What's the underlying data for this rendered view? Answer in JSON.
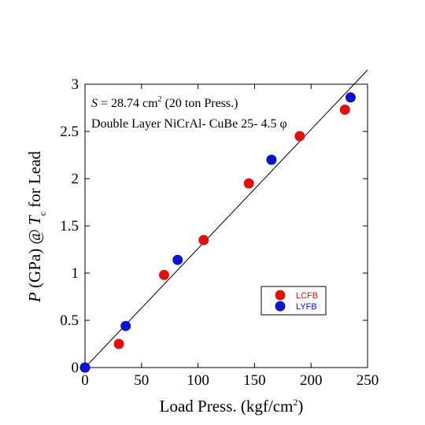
{
  "chart_data": {
    "type": "scatter",
    "xlabel": {
      "main": "Load Press. (kgf/cm",
      "sup": "2",
      "tail": ")"
    },
    "ylabel": {
      "var": "P",
      "unit": " (GPa) @ ",
      "tvar": "T",
      "sub": "c",
      "tail": "  for Lead"
    },
    "annotation": {
      "line1": {
        "var": "S",
        "rest": " = 28.74 cm",
        "sup": "2",
        "tail": " (20 ton Press.)"
      },
      "line2": "Double Layer NiCrAl- CuBe 25- 4.5 φ"
    },
    "xlim": [
      0,
      250
    ],
    "ylim": [
      0,
      3
    ],
    "xticks": [
      "0",
      "50",
      "100",
      "150",
      "200",
      "250"
    ],
    "yticks": [
      "0",
      "0.5",
      "1",
      "1.5",
      "2",
      "2.5",
      "3"
    ],
    "grid": false,
    "legend_position": "lower-right",
    "fit_line": {
      "x": [
        0,
        250
      ],
      "y": [
        0,
        3.15
      ]
    },
    "series": [
      {
        "name": "LCFB",
        "color": "#dd1111",
        "points": [
          [
            0,
            0
          ],
          [
            30,
            0.25
          ],
          [
            70,
            0.98
          ],
          [
            105,
            1.35
          ],
          [
            145,
            1.95
          ],
          [
            190,
            2.45
          ],
          [
            230,
            2.73
          ]
        ]
      },
      {
        "name": "LYFB",
        "color": "#0a14c8",
        "points": [
          [
            0,
            0
          ],
          [
            36,
            0.44
          ],
          [
            82,
            1.14
          ],
          [
            165,
            2.2
          ],
          [
            235,
            2.86
          ]
        ]
      }
    ]
  }
}
